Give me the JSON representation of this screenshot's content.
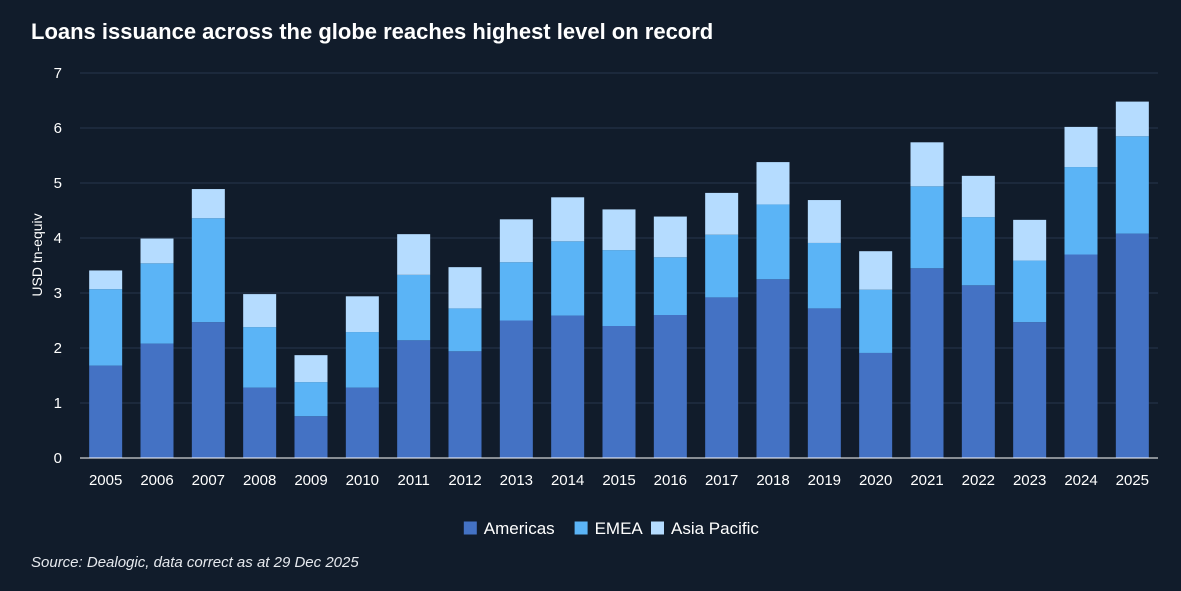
{
  "chart_data": {
    "type": "bar",
    "stacked": true,
    "title": "Loans issuance across the globe reaches highest level on record",
    "xlabel": "",
    "ylabel": "USD tn-equiv",
    "ylim": [
      0,
      7
    ],
    "yticks": [
      0,
      1,
      2,
      3,
      4,
      5,
      6,
      7
    ],
    "grid": true,
    "legend_position": "bottom-center",
    "categories": [
      "2005",
      "2006",
      "2007",
      "2008",
      "2009",
      "2010",
      "2011",
      "2012",
      "2013",
      "2014",
      "2015",
      "2016",
      "2017",
      "2018",
      "2019",
      "2020",
      "2021",
      "2022",
      "2023",
      "2024",
      "2025"
    ],
    "series": [
      {
        "name": "Americas",
        "color": "#4472c4",
        "values": [
          1.68,
          2.08,
          2.47,
          1.28,
          0.76,
          1.28,
          2.14,
          1.94,
          2.5,
          2.59,
          2.4,
          2.6,
          2.92,
          3.25,
          2.72,
          1.91,
          3.45,
          3.14,
          2.47,
          3.7,
          4.08
        ]
      },
      {
        "name": "EMEA",
        "color": "#5bb4f6",
        "values": [
          1.39,
          1.46,
          1.89,
          1.1,
          0.62,
          1.01,
          1.19,
          0.78,
          1.06,
          1.35,
          1.38,
          1.05,
          1.14,
          1.36,
          1.19,
          1.15,
          1.49,
          1.24,
          1.12,
          1.59,
          1.77
        ]
      },
      {
        "name": "Asia Pacific",
        "color": "#b5dcff",
        "values": [
          0.34,
          0.45,
          0.53,
          0.6,
          0.49,
          0.65,
          0.74,
          0.75,
          0.78,
          0.8,
          0.74,
          0.74,
          0.76,
          0.77,
          0.78,
          0.7,
          0.8,
          0.75,
          0.74,
          0.73,
          0.63
        ]
      }
    ],
    "source": "Source: Dealogic, data correct as at 29 Dec 2025"
  },
  "colors": {
    "background": "#111c2b",
    "gridline": "#26364c",
    "axis": "#ffffff"
  }
}
